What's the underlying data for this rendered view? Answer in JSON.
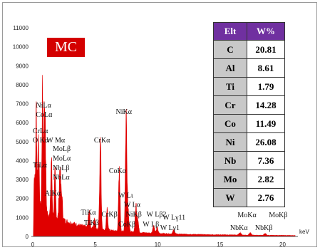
{
  "chart_data": {
    "type": "line",
    "title": "",
    "xlabel": "keV",
    "ylabel": "",
    "xlim": [
      0,
      21
    ],
    "ylim": [
      0,
      11000
    ],
    "x_ticks": [
      "0",
      "5",
      "10",
      "15",
      "20"
    ],
    "y_ticks": [
      "0",
      "1000",
      "2000",
      "3000",
      "4000",
      "5000",
      "6000",
      "7000",
      "8000",
      "9000",
      "10000",
      "11000"
    ],
    "series_color": "#e00000",
    "spectrum": {
      "background": [
        [
          0.05,
          0
        ],
        [
          0.1,
          3200
        ],
        [
          0.2,
          2600
        ],
        [
          0.35,
          1900
        ],
        [
          0.5,
          1650
        ],
        [
          1,
          1250
        ],
        [
          2,
          980
        ],
        [
          3,
          720
        ],
        [
          4,
          540
        ],
        [
          5,
          400
        ],
        [
          6,
          330
        ],
        [
          7,
          270
        ],
        [
          8,
          230
        ],
        [
          9,
          190
        ],
        [
          10,
          160
        ],
        [
          12,
          120
        ],
        [
          14,
          95
        ],
        [
          16,
          80
        ],
        [
          18,
          65
        ],
        [
          20,
          55
        ],
        [
          21,
          50
        ]
      ],
      "peaks": [
        {
          "x": 0.28,
          "y": 4500,
          "w": 0.04
        },
        {
          "x": 0.45,
          "y": 3700,
          "w": 0.05
        },
        {
          "x": 0.78,
          "y": 5900,
          "w": 0.05
        },
        {
          "x": 0.93,
          "y": 5000,
          "w": 0.05
        },
        {
          "x": 1.01,
          "y": 2600,
          "w": 0.05
        },
        {
          "x": 1.49,
          "y": 3000,
          "w": 0.05
        },
        {
          "x": 1.78,
          "y": 2200,
          "w": 0.05
        },
        {
          "x": 2.17,
          "y": 2600,
          "w": 0.06
        },
        {
          "x": 2.32,
          "y": 1200,
          "w": 0.06
        },
        {
          "x": 4.51,
          "y": 900,
          "w": 0.06
        },
        {
          "x": 4.93,
          "y": 500,
          "w": 0.06
        },
        {
          "x": 5.41,
          "y": 4700,
          "w": 0.06
        },
        {
          "x": 5.95,
          "y": 1000,
          "w": 0.06
        },
        {
          "x": 6.93,
          "y": 3000,
          "w": 0.06
        },
        {
          "x": 7.48,
          "y": 6150,
          "w": 0.065
        },
        {
          "x": 7.65,
          "y": 1000,
          "w": 0.06
        },
        {
          "x": 8.26,
          "y": 1350,
          "w": 0.065
        },
        {
          "x": 8.4,
          "y": 700,
          "w": 0.065
        },
        {
          "x": 9.67,
          "y": 380,
          "w": 0.07
        },
        {
          "x": 9.96,
          "y": 280,
          "w": 0.07
        },
        {
          "x": 11.29,
          "y": 200,
          "w": 0.07
        },
        {
          "x": 16.6,
          "y": 120,
          "w": 0.08
        },
        {
          "x": 17.4,
          "y": 110,
          "w": 0.08
        },
        {
          "x": 18.6,
          "y": 90,
          "w": 0.08
        }
      ]
    },
    "annotations": [
      {
        "text": "NiLα",
        "x": 0.25,
        "y": 6800
      },
      {
        "text": "CoLα",
        "x": 0.25,
        "y": 6300
      },
      {
        "text": "CrLα",
        "x": 0.0,
        "y": 5450
      },
      {
        "text": "O Kα",
        "x": 0.0,
        "y": 4950
      },
      {
        "text": "W Mα",
        "x": 1.1,
        "y": 4950
      },
      {
        "text": "MoLβ",
        "x": 1.6,
        "y": 4500
      },
      {
        "text": "MoLα",
        "x": 1.6,
        "y": 4000
      },
      {
        "text": "NbLβ",
        "x": 1.6,
        "y": 3500
      },
      {
        "text": "NbLα",
        "x": 1.6,
        "y": 3000
      },
      {
        "text": "TiLα",
        "x": 0.0,
        "y": 3650
      },
      {
        "text": "AlKα",
        "x": 0.95,
        "y": 2150
      },
      {
        "text": "TiKα",
        "x": 3.85,
        "y": 1150
      },
      {
        "text": "TiKβ",
        "x": 4.1,
        "y": 600
      },
      {
        "text": "CrKα",
        "x": 4.9,
        "y": 4950
      },
      {
        "text": "CrKβ",
        "x": 5.5,
        "y": 1050
      },
      {
        "text": "CoKα",
        "x": 6.1,
        "y": 3350
      },
      {
        "text": "NiKα",
        "x": 6.65,
        "y": 6450
      },
      {
        "text": "W Lι",
        "x": 6.85,
        "y": 2050
      },
      {
        "text": "W Lα",
        "x": 7.3,
        "y": 1550
      },
      {
        "text": "NiKβ",
        "x": 7.45,
        "y": 1050
      },
      {
        "text": "CoKβ",
        "x": 6.85,
        "y": 520
      },
      {
        "text": "W Lβ2",
        "x": 9.1,
        "y": 1050
      },
      {
        "text": "W Lγ11",
        "x": 10.4,
        "y": 880
      },
      {
        "text": "W Lβ",
        "x": 8.8,
        "y": 520
      },
      {
        "text": "W Lγ1",
        "x": 10.2,
        "y": 340
      },
      {
        "text": "MoKα",
        "x": 16.4,
        "y": 1020
      },
      {
        "text": "MoKβ",
        "x": 18.9,
        "y": 1020
      },
      {
        "text": "NbKα",
        "x": 15.8,
        "y": 330
      },
      {
        "text": "NbKβ",
        "x": 17.8,
        "y": 330
      }
    ],
    "label": "MC",
    "composition_table": {
      "headers": [
        "Elt",
        "W%"
      ],
      "rows": [
        {
          "element": "C",
          "wt": "20.81"
        },
        {
          "element": "Al",
          "wt": "8.61"
        },
        {
          "element": "Ti",
          "wt": "1.79"
        },
        {
          "element": "Cr",
          "wt": "14.28"
        },
        {
          "element": "Co",
          "wt": "11.49"
        },
        {
          "element": "Ni",
          "wt": "26.08"
        },
        {
          "element": "Nb",
          "wt": "7.36"
        },
        {
          "element": "Mo",
          "wt": "2.82"
        },
        {
          "element": "W",
          "wt": "2.76"
        }
      ]
    }
  }
}
